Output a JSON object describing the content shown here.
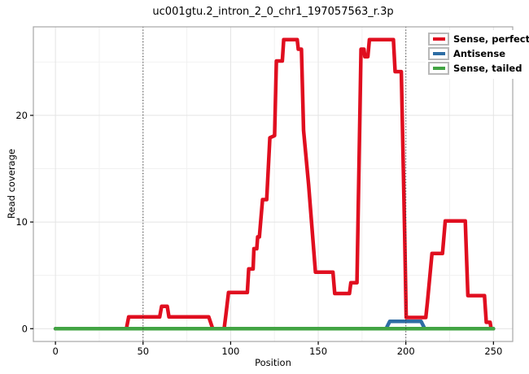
{
  "legend": {
    "items": [
      {
        "label": "Sense, perfect",
        "color": "#E00E1F"
      },
      {
        "label": "Antisense",
        "color": "#2E6DA4"
      },
      {
        "label": "Sense, tailed",
        "color": "#42A443"
      }
    ]
  },
  "chart_data": {
    "type": "line",
    "title": "uc001gtu.2_intron_2_0_chr1_197057563_r.3p",
    "xlabel": "Position",
    "ylabel": "Read coverage",
    "x_ticks": [
      0,
      50,
      100,
      150,
      200,
      250
    ],
    "y_ticks": [
      0,
      10,
      20
    ],
    "x_minor_ticks": [
      25,
      75,
      125,
      175,
      225
    ],
    "y_minor_ticks": [
      5,
      15,
      25
    ],
    "x_domain": [
      -12.6,
      261.0
    ],
    "y_domain": [
      -1.2,
      28.3
    ],
    "vlines": [
      50,
      200
    ],
    "grid": true,
    "legend_position": "top-right",
    "colors": {
      "major_grid": "#e4e4e4",
      "minor_grid": "#f1f1f1",
      "panel_border": "#a6a6a6",
      "vline": "#303030",
      "tick": "#000000"
    },
    "series": [
      {
        "name": "Sense, perfect",
        "color": "#E00E1F",
        "points": [
          [
            0,
            0
          ],
          [
            40.5,
            0
          ],
          [
            41.8,
            1.1
          ],
          [
            59.5,
            1.1
          ],
          [
            60.6,
            2.1
          ],
          [
            63.8,
            2.1
          ],
          [
            64.8,
            1.1
          ],
          [
            87.5,
            1.1
          ],
          [
            89.8,
            0
          ],
          [
            96.3,
            0
          ],
          [
            97.2,
            1.2
          ],
          [
            98.8,
            3.4
          ],
          [
            109.5,
            3.4
          ],
          [
            110.3,
            5.6
          ],
          [
            112.8,
            5.6
          ],
          [
            113.3,
            7.5
          ],
          [
            114.9,
            7.5
          ],
          [
            115.4,
            8.6
          ],
          [
            116.4,
            8.6
          ],
          [
            118.2,
            12.1
          ],
          [
            120.6,
            12.1
          ],
          [
            122.4,
            17.9
          ],
          [
            125.1,
            18.1
          ],
          [
            126.1,
            25.1
          ],
          [
            129.5,
            25.1
          ],
          [
            130.3,
            27.1
          ],
          [
            138.0,
            27.1
          ],
          [
            138.6,
            26.2
          ],
          [
            140.4,
            26.2
          ],
          [
            141.6,
            18.6
          ],
          [
            144.5,
            13.5
          ],
          [
            148.4,
            5.3
          ],
          [
            158.4,
            5.3
          ],
          [
            159.4,
            3.3
          ],
          [
            167.8,
            3.3
          ],
          [
            168.6,
            4.3
          ],
          [
            172.1,
            4.3
          ],
          [
            174.4,
            26.2
          ],
          [
            176.1,
            26.2
          ],
          [
            176.6,
            25.5
          ],
          [
            178.3,
            25.5
          ],
          [
            179.2,
            27.1
          ],
          [
            192.9,
            27.1
          ],
          [
            193.9,
            24.1
          ],
          [
            197.4,
            24.1
          ],
          [
            199.3,
            9.0
          ],
          [
            200.2,
            1.05
          ],
          [
            211.4,
            1.05
          ],
          [
            212.3,
            2.5
          ],
          [
            214.9,
            7.05
          ],
          [
            220.9,
            7.05
          ],
          [
            222.5,
            10.1
          ],
          [
            233.9,
            10.1
          ],
          [
            235.4,
            3.1
          ],
          [
            244.9,
            3.1
          ],
          [
            245.9,
            0.6
          ],
          [
            248.1,
            0.6
          ],
          [
            248.7,
            0
          ],
          [
            250,
            0
          ]
        ]
      },
      {
        "name": "Antisense",
        "color": "#2E6DA4",
        "points": [
          [
            0,
            0
          ],
          [
            188.7,
            0
          ],
          [
            190.8,
            0.68
          ],
          [
            208.7,
            0.68
          ],
          [
            210.8,
            0
          ],
          [
            250,
            0
          ]
        ]
      },
      {
        "name": "Sense, tailed",
        "color": "#42A443",
        "points": [
          [
            0,
            0
          ],
          [
            250,
            0
          ]
        ]
      }
    ]
  }
}
